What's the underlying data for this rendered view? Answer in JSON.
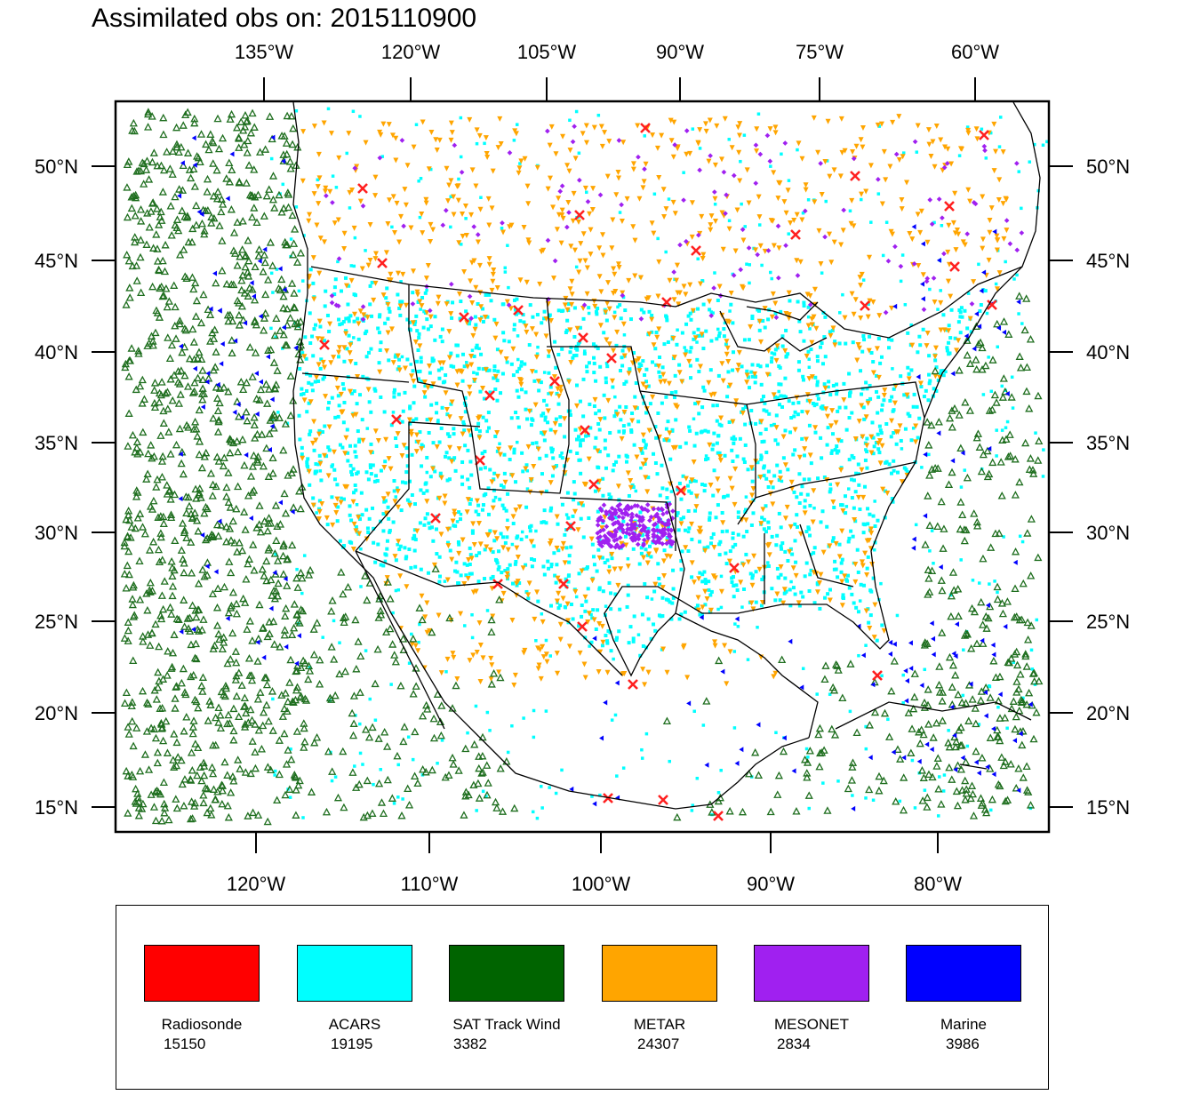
{
  "title": "Assimilated obs on: 2015110900",
  "top_lon_labels": [
    "135°W",
    "120°W",
    "105°W",
    "90°W",
    "75°W",
    "60°W"
  ],
  "bottom_lon_labels": [
    "120°W",
    "110°W",
    "100°W",
    "90°W",
    "80°W"
  ],
  "lat_labels": [
    "50°N",
    "45°N",
    "40°N",
    "35°N",
    "30°N",
    "25°N",
    "20°N",
    "15°N"
  ],
  "legend": [
    {
      "name": "Radiosonde",
      "count": "15150",
      "color": "#ff0000"
    },
    {
      "name": "ACARS",
      "count": "19195",
      "color": "#00ffff"
    },
    {
      "name": "SAT Track Wind",
      "count": "3382",
      "color": "#006400"
    },
    {
      "name": "METAR",
      "count": "24307",
      "color": "#ffa500"
    },
    {
      "name": "MESONET",
      "count": "2834",
      "color": "#a020f0"
    },
    {
      "name": "Marine",
      "count": "3986",
      "color": "#0000ff"
    }
  ]
}
